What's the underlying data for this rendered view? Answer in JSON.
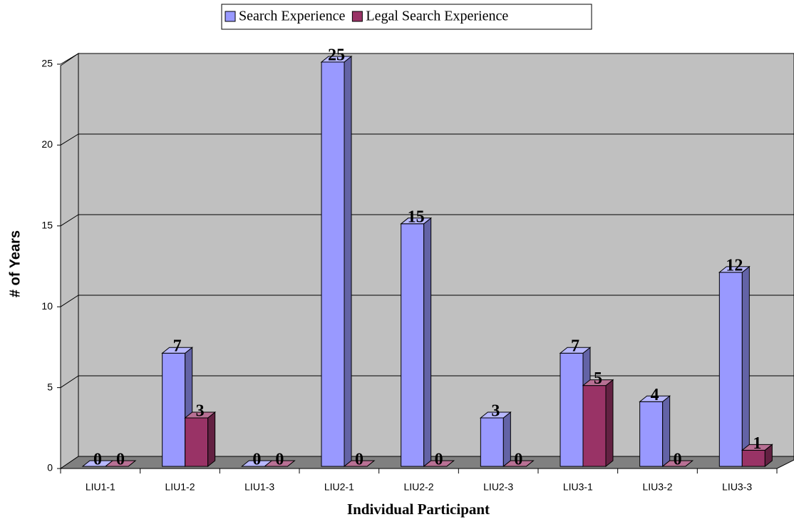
{
  "chart_data": {
    "type": "bar3d",
    "x_label": "Individual Participant",
    "y_label": "# of Years",
    "categories": [
      "LIU1-1",
      "LIU1-2",
      "LIU1-3",
      "LIU2-1",
      "LIU2-2",
      "LIU2-3",
      "LIU3-1",
      "LIU3-2",
      "LIU3-3"
    ],
    "series": [
      {
        "name": "Search Experience",
        "color": "#9999ff",
        "values": [
          0,
          7,
          0,
          25,
          15,
          3,
          7,
          4,
          12
        ]
      },
      {
        "name": "Legal Search Experience",
        "color": "#993366",
        "values": [
          0,
          3,
          0,
          0,
          0,
          0,
          5,
          0,
          1
        ]
      }
    ],
    "ylim": [
      0,
      25
    ],
    "yticks": [
      0,
      5,
      10,
      15,
      20,
      25
    ],
    "grid": true,
    "legend": "top"
  }
}
